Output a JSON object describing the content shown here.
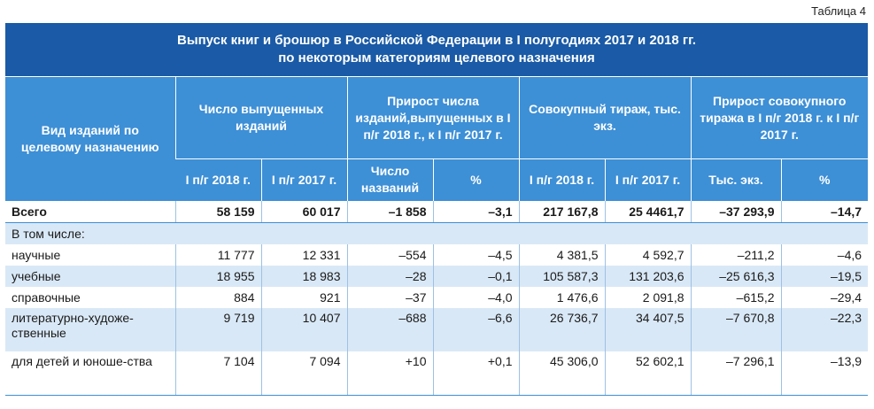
{
  "caption": "Таблица 4",
  "title_line1": "Выпуск книг и брошюр в Российской Федерации в I полугодиях 2017 и 2018 гг.",
  "title_line2": "по некоторым категориям целевого назначения",
  "headers": {
    "col_type": "Вид изданий по целевому назначению",
    "count": "Число выпущенных изданий",
    "count_growth": "Прирост числа изданий,выпущенных в I п/г 2018 г., к I п/г 2017 г.",
    "circulation": "Совокупный тираж, тыс. экз.",
    "circ_growth": "Прирост совокупного тиража в I п/г 2018 г. к I п/г 2017 г.",
    "h1_2018": "I п/г 2018 г.",
    "h1_2017": "I п/г 2017 г.",
    "titles_count": "Число названий",
    "pct": "%",
    "c_2018": "I п/г 2018 г.",
    "c_2017": "I п/г 2017 г.",
    "thous": "Тыс. экз.",
    "pct2": "%"
  },
  "total": {
    "name": "Всего",
    "c18": "58 159",
    "c17": "60 017",
    "dn": "–1 858",
    "dp": "–3,1",
    "t18": "217 167,8",
    "t17": "25 4461,7",
    "dt": "–37 293,9",
    "dtp": "–14,7"
  },
  "subheading": "В том числе:",
  "rows": [
    {
      "name": "научные",
      "c18": "11 777",
      "c17": "12 331",
      "dn": "–554",
      "dp": "–4,5",
      "t18": "4 381,5",
      "t17": "4 592,7",
      "dt": "–211,2",
      "dtp": "–4,6"
    },
    {
      "name": "учебные",
      "c18": "18 955",
      "c17": "18 983",
      "dn": "–28",
      "dp": "–0,1",
      "t18": "105 587,3",
      "t17": "131 203,6",
      "dt": "–25 616,3",
      "dtp": "–19,5"
    },
    {
      "name": "справочные",
      "c18": "884",
      "c17": "921",
      "dn": "–37",
      "dp": "–4,0",
      "t18": "1 476,6",
      "t17": "2 091,8",
      "dt": "–615,2",
      "dtp": "–29,4"
    },
    {
      "name": "литературно-художе-ственные",
      "c18": "9 719",
      "c17": "10 407",
      "dn": "–688",
      "dp": "–6,6",
      "t18": "26 736,7",
      "t17": "34 407,5",
      "dt": "–7 670,8",
      "dtp": "–22,3"
    },
    {
      "name": "для детей и юноше-ства",
      "c18": "7 104",
      "c17": "7 094",
      "dn": "+10",
      "dp": "+0,1",
      "t18": "45 306,0",
      "t17": "52 602,1",
      "dt": "–7 296,1",
      "dtp": "–13,9"
    }
  ]
}
